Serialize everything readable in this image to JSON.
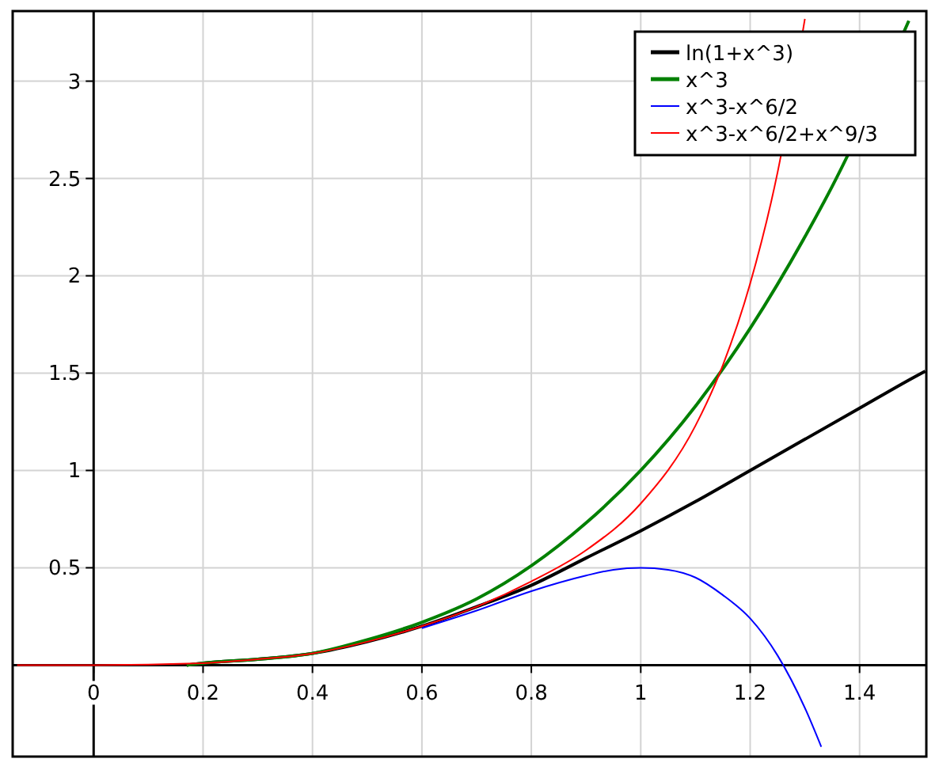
{
  "chart_data": {
    "type": "line",
    "xlim": [
      -0.148,
      1.522
    ],
    "ylim": [
      -0.47,
      3.36
    ],
    "xticks": [
      0,
      0.2,
      0.4,
      0.6,
      0.8,
      1,
      1.2,
      1.4
    ],
    "yticks": [
      0.5,
      1,
      1.5,
      2,
      2.5,
      3
    ],
    "grid": true,
    "legend": "top right",
    "marker": "none",
    "line_style": "solid",
    "series": [
      {
        "name": "ln(1+x^3)",
        "color": "#000000",
        "x": [
          0.17,
          0.2,
          0.3,
          0.4,
          0.5,
          0.6,
          0.7,
          0.8,
          0.9,
          1,
          1.1,
          1.2,
          1.3,
          1.4,
          1.5,
          1.52
        ],
        "values": [
          0,
          0.01,
          0.03,
          0.06,
          0.12,
          0.2,
          0.3,
          0.41,
          0.55,
          0.69,
          0.84,
          1,
          1.16,
          1.32,
          1.48,
          1.51
        ]
      },
      {
        "name": "x^3",
        "color": "#008000",
        "x": [
          0.17,
          0.2,
          0.3,
          0.4,
          0.5,
          0.6,
          0.7,
          0.8,
          0.9,
          1,
          1.1,
          1.2,
          1.3,
          1.35,
          1.49
        ],
        "values": [
          0,
          0.01,
          0.03,
          0.06,
          0.13,
          0.22,
          0.34,
          0.51,
          0.73,
          1,
          1.33,
          1.73,
          2.2,
          2.46,
          3.31
        ]
      },
      {
        "name": "x^3-x^6/2",
        "color": "#0000ff",
        "x": [
          0.6,
          0.7,
          0.8,
          0.9,
          0.95,
          1,
          1.05,
          1.1,
          1.15,
          1.2,
          1.25,
          1.3,
          1.33
        ],
        "values": [
          0.19,
          0.28,
          0.38,
          0.46,
          0.49,
          0.5,
          0.49,
          0.45,
          0.36,
          0.24,
          0.05,
          -0.22,
          -0.42
        ]
      },
      {
        "name": "x^3-x^6/2+x^9/3",
        "color": "#ff0000",
        "x": [
          -0.14,
          0,
          0.2,
          0.3,
          0.4,
          0.5,
          0.6,
          0.7,
          0.8,
          0.9,
          1,
          1.1,
          1.15,
          1.2,
          1.25,
          1.3
        ],
        "values": [
          0,
          0,
          0.01,
          0.03,
          0.06,
          0.12,
          0.2,
          0.3,
          0.43,
          0.59,
          0.83,
          1.23,
          1.54,
          1.96,
          2.53,
          3.32
        ]
      }
    ]
  }
}
